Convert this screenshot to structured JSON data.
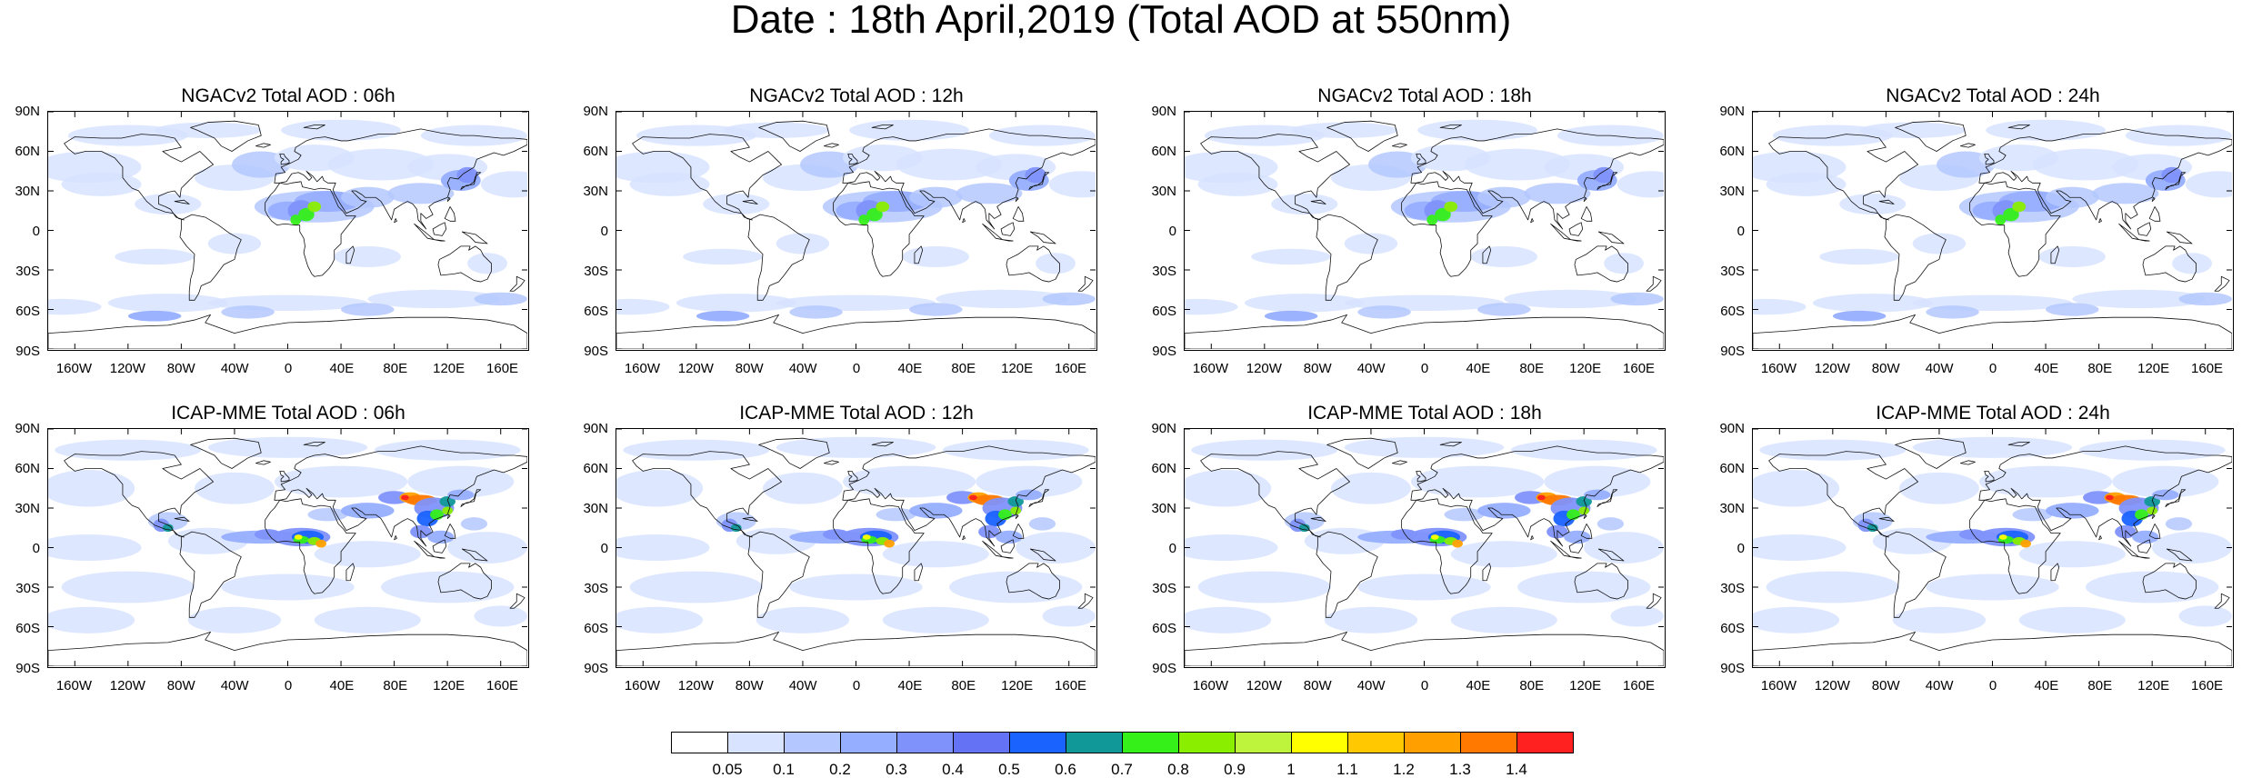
{
  "main_title": "Date : 18th April,2019 (Total AOD at 550nm)",
  "lat_labels": [
    "90N",
    "60N",
    "30N",
    "0",
    "30S",
    "60S",
    "90S"
  ],
  "lon_labels": [
    "160W",
    "120W",
    "80W",
    "40W",
    "0",
    "40E",
    "80E",
    "120E",
    "160E"
  ],
  "lon_values": [
    -160,
    -120,
    -80,
    -40,
    0,
    40,
    80,
    120,
    160
  ],
  "lat_values": [
    90,
    60,
    30,
    0,
    -30,
    -60,
    -90
  ],
  "panels": [
    {
      "title": "NGACv2 Total AOD : 06h",
      "model": "NGACv2",
      "hour": "06h"
    },
    {
      "title": "NGACv2 Total AOD : 12h",
      "model": "NGACv2",
      "hour": "12h"
    },
    {
      "title": "NGACv2 Total AOD : 18h",
      "model": "NGACv2",
      "hour": "18h"
    },
    {
      "title": "NGACv2 Total AOD : 24h",
      "model": "NGACv2",
      "hour": "24h"
    },
    {
      "title": "ICAP-MME Total AOD : 06h",
      "model": "ICAP-MME",
      "hour": "06h"
    },
    {
      "title": "ICAP-MME Total AOD : 12h",
      "model": "ICAP-MME",
      "hour": "12h"
    },
    {
      "title": "ICAP-MME Total AOD : 18h",
      "model": "ICAP-MME",
      "hour": "18h"
    },
    {
      "title": "ICAP-MME Total AOD : 24h",
      "model": "ICAP-MME",
      "hour": "24h"
    }
  ],
  "colorbar": {
    "colors": [
      "#ffffff",
      "#d7e3ff",
      "#b4c8ff",
      "#96aeff",
      "#7f92fb",
      "#6473f5",
      "#1a63ff",
      "#109898",
      "#36f01a",
      "#8aee00",
      "#bef53c",
      "#ffff00",
      "#ffc800",
      "#ffa000",
      "#ff7800",
      "#ff2020"
    ],
    "labels": [
      "0.05",
      "0.1",
      "0.2",
      "0.3",
      "0.4",
      "0.5",
      "0.6",
      "0.7",
      "0.8",
      "0.9",
      "1",
      "1.1",
      "1.2",
      "1.3",
      "1.4"
    ]
  }
}
